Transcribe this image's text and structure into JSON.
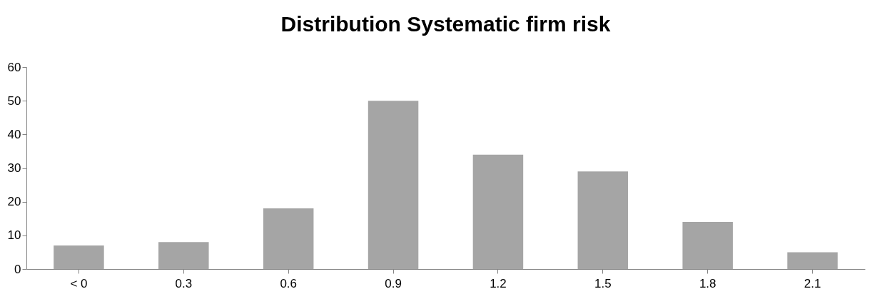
{
  "chart_data": {
    "type": "bar",
    "title": "Distribution Systematic firm risk",
    "categories": [
      "< 0",
      "0.3",
      "0.6",
      "0.9",
      "1.2",
      "1.5",
      "1.8",
      "2.1"
    ],
    "values": [
      7,
      8,
      18,
      50,
      34,
      29,
      14,
      5
    ],
    "color": "#a5a5a5",
    "ylim": [
      0,
      60
    ],
    "yticks": [
      0,
      10,
      20,
      30,
      40,
      50,
      60
    ],
    "grid": false
  }
}
